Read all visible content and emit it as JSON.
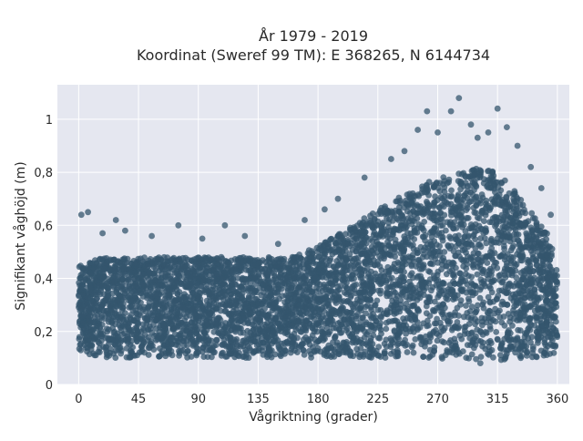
{
  "chart_data": {
    "type": "scatter",
    "title_lines": [
      "År 1979 - 2019",
      "Koordinat (Sweref 99 TM): E 368265, N 6144734"
    ],
    "xlabel": "Vågriktning (grader)",
    "ylabel": "Signifikant våghöjd (m)",
    "xlim": [
      -16,
      369
    ],
    "ylim": [
      0,
      1.13
    ],
    "x_ticks": [
      0,
      45,
      90,
      135,
      180,
      225,
      270,
      315,
      360
    ],
    "x_tick_labels": [
      "0",
      "45",
      "90",
      "135",
      "180",
      "225",
      "270",
      "315",
      "360"
    ],
    "y_ticks": [
      0,
      0.2,
      0.4,
      0.6,
      0.8,
      1.0
    ],
    "y_tick_labels": [
      "0",
      "0,2",
      "0,4",
      "0,6",
      "0,8",
      "1"
    ],
    "grid": true,
    "background": "#e5e7f0",
    "marker_color": "#34566e",
    "series": [
      {
        "envelope_x": [
          0,
          20,
          45,
          90,
          135,
          160,
          180,
          200,
          225,
          250,
          270,
          290,
          300,
          315,
          330,
          345,
          355,
          360
        ],
        "envelope_low": [
          0.12,
          0.1,
          0.1,
          0.1,
          0.1,
          0.1,
          0.1,
          0.1,
          0.1,
          0.1,
          0.1,
          0.08,
          0.08,
          0.08,
          0.09,
          0.1,
          0.11,
          0.12
        ],
        "envelope_high": [
          0.45,
          0.48,
          0.48,
          0.48,
          0.48,
          0.48,
          0.52,
          0.58,
          0.66,
          0.73,
          0.78,
          0.8,
          0.82,
          0.8,
          0.72,
          0.62,
          0.55,
          0.42
        ],
        "outliers": [
          [
            2,
            0.64
          ],
          [
            7,
            0.65
          ],
          [
            18,
            0.57
          ],
          [
            28,
            0.62
          ],
          [
            35,
            0.58
          ],
          [
            55,
            0.56
          ],
          [
            75,
            0.6
          ],
          [
            93,
            0.55
          ],
          [
            110,
            0.6
          ],
          [
            125,
            0.56
          ],
          [
            150,
            0.53
          ],
          [
            170,
            0.62
          ],
          [
            185,
            0.66
          ],
          [
            195,
            0.7
          ],
          [
            215,
            0.78
          ],
          [
            235,
            0.85
          ],
          [
            245,
            0.88
          ],
          [
            255,
            0.96
          ],
          [
            262,
            1.03
          ],
          [
            270,
            0.95
          ],
          [
            280,
            1.03
          ],
          [
            286,
            1.08
          ],
          [
            295,
            0.98
          ],
          [
            300,
            0.93
          ],
          [
            308,
            0.95
          ],
          [
            315,
            1.04
          ],
          [
            322,
            0.97
          ],
          [
            330,
            0.9
          ],
          [
            340,
            0.82
          ],
          [
            348,
            0.74
          ],
          [
            355,
            0.64
          ]
        ]
      }
    ]
  }
}
